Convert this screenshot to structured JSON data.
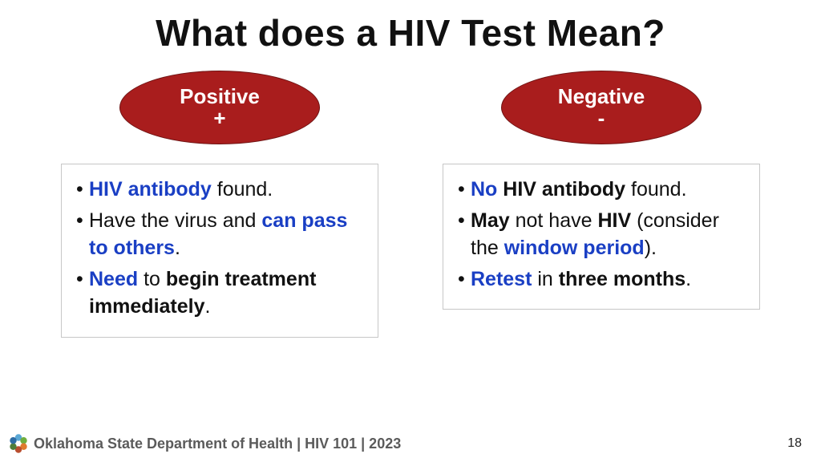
{
  "title": "What does a HIV Test Mean?",
  "colors": {
    "ellipse_fill": "#a91d1d",
    "blue_text": "#1a3fc4",
    "box_border": "#c7c7c7",
    "footer_text": "#5b5b5b"
  },
  "positive": {
    "label": "Positive",
    "symbol": "+",
    "bullets": [
      [
        {
          "text": "HIV antibody",
          "style": "blue"
        },
        {
          "text": " found.",
          "style": "normal"
        }
      ],
      [
        {
          "text": "Have the virus and ",
          "style": "normal"
        },
        {
          "text": "can pass to others",
          "style": "blue"
        },
        {
          "text": ".",
          "style": "normal"
        }
      ],
      [
        {
          "text": "Need",
          "style": "blue"
        },
        {
          "text": " to ",
          "style": "normal"
        },
        {
          "text": "begin treatment immediately",
          "style": "bold"
        },
        {
          "text": ".",
          "style": "normal"
        }
      ]
    ]
  },
  "negative": {
    "label": "Negative",
    "symbol": "-",
    "bullets": [
      [
        {
          "text": "No",
          "style": "blue"
        },
        {
          "text": " ",
          "style": "normal"
        },
        {
          "text": "HIV antibody",
          "style": "bold"
        },
        {
          "text": " found.",
          "style": "normal"
        }
      ],
      [
        {
          "text": "May",
          "style": "bold"
        },
        {
          "text": " not have ",
          "style": "normal"
        },
        {
          "text": "HIV",
          "style": "bold"
        },
        {
          "text": " (consider the ",
          "style": "normal"
        },
        {
          "text": "window period",
          "style": "blue"
        },
        {
          "text": ").",
          "style": "normal"
        }
      ],
      [
        {
          "text": "Retest",
          "style": "blue"
        },
        {
          "text": " in ",
          "style": "normal"
        },
        {
          "text": "three months",
          "style": "bold"
        },
        {
          "text": ".",
          "style": "normal"
        }
      ]
    ]
  },
  "footer": {
    "text": "Oklahoma State Department of Health | HIV 101 | 2023",
    "page": "18",
    "logo_colors": [
      "#5aa8d6",
      "#6fae3e",
      "#e07a2d",
      "#b94e2f",
      "#4f7d3a",
      "#2e6ca4"
    ]
  }
}
